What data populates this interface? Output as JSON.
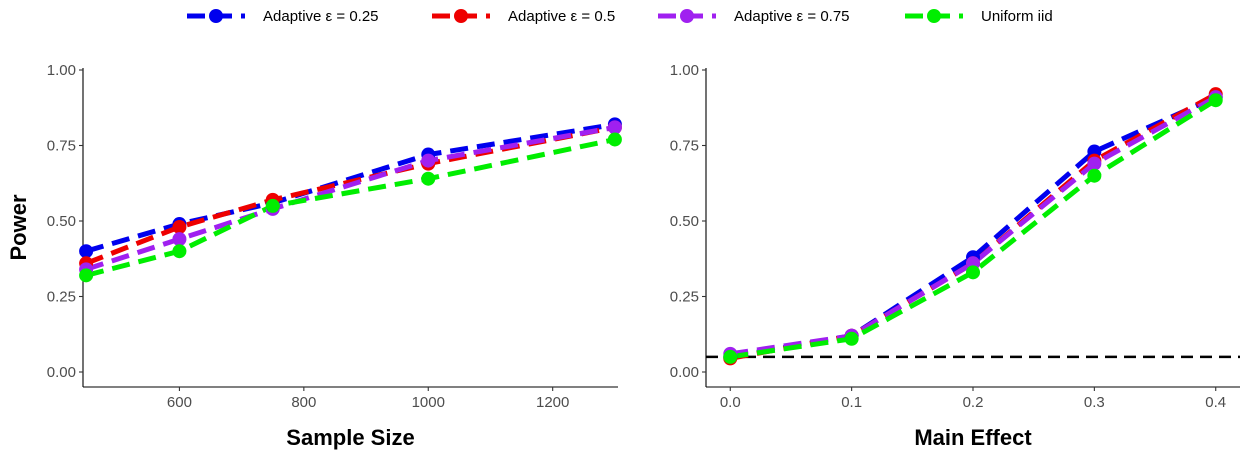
{
  "chart_data": [
    {
      "type": "line",
      "xlabel": "Sample Size",
      "ylabel": "Power",
      "xlim": [
        445,
        1305
      ],
      "ylim": [
        0,
        1
      ],
      "xticks": [
        600,
        800,
        1000,
        1200
      ],
      "yticks": [
        0.0,
        0.25,
        0.5,
        0.75,
        1.0
      ],
      "xtick_labels": [
        "600",
        "800",
        "1000",
        "1200"
      ],
      "ytick_labels": [
        "0.00",
        "0.25",
        "0.50",
        "0.75",
        "1.00"
      ],
      "grid": false,
      "x": [
        450,
        600,
        750,
        1000,
        1300
      ],
      "series": [
        {
          "name": "Adaptive ε = 0.25",
          "color": "#0000ee",
          "values": [
            0.4,
            0.49,
            0.56,
            0.72,
            0.82
          ]
        },
        {
          "name": "Adaptive ε = 0.5",
          "color": "#ee0000",
          "values": [
            0.36,
            0.48,
            0.57,
            0.69,
            0.81
          ]
        },
        {
          "name": "Adaptive ε = 0.75",
          "color": "#a020f0",
          "values": [
            0.34,
            0.44,
            0.54,
            0.7,
            0.81
          ]
        },
        {
          "name": "Uniform iid",
          "color": "#00ee00",
          "values": [
            0.32,
            0.4,
            0.55,
            0.64,
            0.77
          ]
        }
      ]
    },
    {
      "type": "line",
      "xlabel": "Main Effect",
      "ylabel": "",
      "xlim": [
        -0.02,
        0.42
      ],
      "ylim": [
        0,
        1
      ],
      "xticks": [
        0.0,
        0.1,
        0.2,
        0.3,
        0.4
      ],
      "yticks": [
        0.0,
        0.25,
        0.5,
        0.75,
        1.0
      ],
      "xtick_labels": [
        "0.0",
        "0.1",
        "0.2",
        "0.3",
        "0.4"
      ],
      "ytick_labels": [
        "0.00",
        "0.25",
        "0.50",
        "0.75",
        "1.00"
      ],
      "grid": false,
      "hline": {
        "y": 0.05,
        "style": "dashed",
        "color": "#000000"
      },
      "x": [
        0.0,
        0.1,
        0.2,
        0.3,
        0.4
      ],
      "series": [
        {
          "name": "Adaptive ε = 0.25",
          "color": "#0000ee",
          "values": [
            0.05,
            0.12,
            0.38,
            0.73,
            0.91
          ]
        },
        {
          "name": "Adaptive ε = 0.5",
          "color": "#ee0000",
          "values": [
            0.045,
            0.12,
            0.36,
            0.7,
            0.92
          ]
        },
        {
          "name": "Adaptive ε = 0.75",
          "color": "#a020f0",
          "values": [
            0.06,
            0.12,
            0.36,
            0.69,
            0.91
          ]
        },
        {
          "name": "Uniform iid",
          "color": "#00ee00",
          "values": [
            0.05,
            0.11,
            0.33,
            0.65,
            0.9
          ]
        }
      ]
    }
  ],
  "legend": {
    "position": "top",
    "items": [
      {
        "label": "Adaptive ε = 0.25",
        "color": "#0000ee"
      },
      {
        "label": "Adaptive ε = 0.5",
        "color": "#ee0000"
      },
      {
        "label": "Adaptive ε = 0.75",
        "color": "#a020f0"
      },
      {
        "label": "Uniform iid",
        "color": "#00ee00"
      }
    ]
  }
}
